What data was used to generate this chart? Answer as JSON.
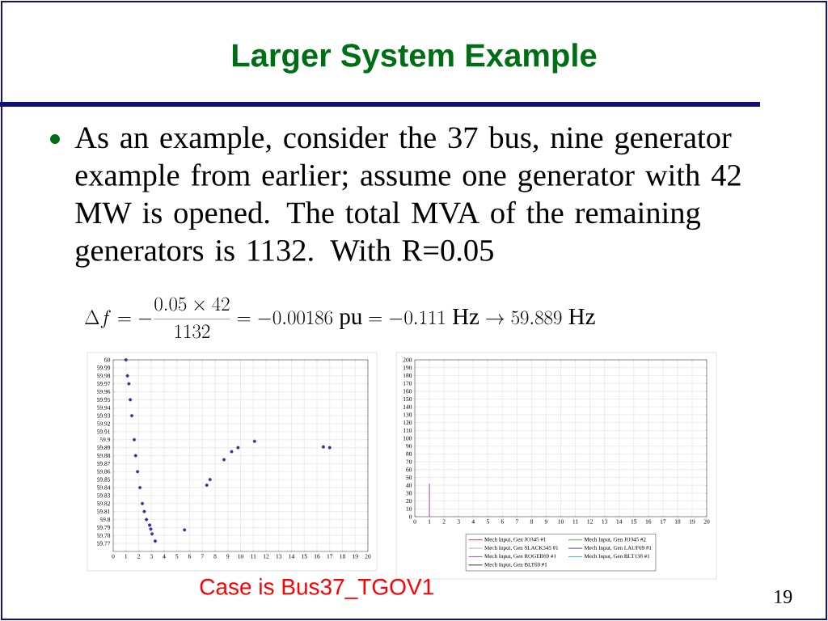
{
  "chart_data": [
    {
      "type": "scatter",
      "title": "Larger System Example",
      "annotations": [
        "As an example, consider the 37 bus, nine generator example from earlier;  assume one generator with 42 MW is opened.  The total MVA of the remaining generators is 1132.  With R=0.05",
        "\\Delta f = -\\frac{0.05\\times 42}{1132} = -0.00186\\ \\mathrm{pu} = -0.111\\ \\mathrm{Hz} \\to 59.889\\ \\mathrm{Hz}",
        "Case is Bus37_TGOV1",
        "19"
      ],
      "marker": "circle",
      "grid": true,
      "xlim": [
        0,
        20
      ],
      "xticks": [
        0,
        1,
        2,
        3,
        4,
        5,
        6,
        7,
        8,
        9,
        10,
        11,
        12,
        13,
        14,
        15,
        16,
        17,
        18,
        19,
        20
      ],
      "ylim": [
        59.76,
        60
      ],
      "yticks": [
        59.77,
        59.78,
        59.79,
        59.8,
        59.81,
        59.82,
        59.83,
        59.84,
        59.85,
        59.86,
        59.87,
        59.88,
        59.89,
        59.9,
        59.91,
        59.92,
        59.93,
        59.94,
        59.95,
        59.96,
        59.97,
        59.98,
        59.99,
        60
      ],
      "series": [
        {
          "color": "#3b2d9a",
          "x": [
            1.0,
            1.12,
            1.23,
            1.34,
            1.46,
            1.65,
            1.76,
            1.91,
            2.1,
            2.29,
            2.44,
            2.61,
            2.86,
            2.95,
            3.05,
            3.3,
            5.6,
            7.35,
            7.6,
            8.7,
            9.3,
            9.8,
            11.1,
            16.5,
            17.0
          ],
          "values": [
            60.0,
            59.98,
            59.97,
            59.95,
            59.93,
            59.9,
            59.88,
            59.86,
            59.84,
            59.82,
            59.81,
            59.8,
            59.793,
            59.788,
            59.782,
            59.773,
            59.787,
            59.843,
            59.85,
            59.875,
            59.885,
            59.89,
            59.898,
            59.891,
            59.89
          ]
        }
      ]
    },
    {
      "type": "line",
      "grid": true,
      "legend": "bottom",
      "xlim": [
        0,
        20
      ],
      "xticks": [
        0,
        1,
        2,
        3,
        4,
        5,
        6,
        7,
        8,
        9,
        10,
        11,
        12,
        13,
        14,
        15,
        16,
        17,
        18,
        19,
        20
      ],
      "ylim": [
        0,
        200
      ],
      "yticks": [
        0,
        10,
        20,
        30,
        40,
        50,
        60,
        70,
        80,
        90,
        100,
        110,
        120,
        130,
        140,
        150,
        160,
        170,
        180,
        190,
        200
      ],
      "series": [
        {
          "name": "Mech Input, Gen JO345 #1",
          "color": "#e00000"
        },
        {
          "name": "Mech Input, Gen JO345 #2",
          "color": "#22a022"
        },
        {
          "name": "Mech Input, Gen SLACK345 #1",
          "color": "#a0a0a0"
        },
        {
          "name": "Mech Input, Gen LAUF69 #1",
          "color": "#1a1a80"
        },
        {
          "name": "Mech Input, Gen ROGER69 #1",
          "color": "#a020a0",
          "x": [
            1,
            1
          ],
          "values": [
            0,
            42
          ]
        },
        {
          "name": "Mech Input, Gen BLT138 #1",
          "color": "#20a0a0"
        },
        {
          "name": "Mech Input, Gen BLT69 #1",
          "color": "#000000"
        }
      ]
    }
  ]
}
